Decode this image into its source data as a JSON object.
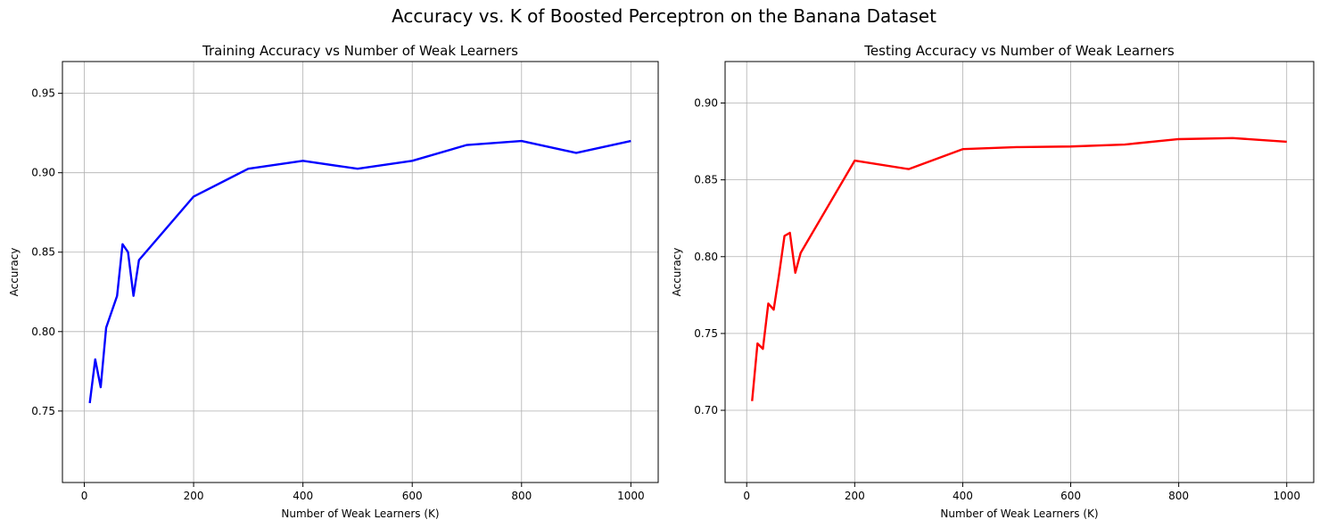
{
  "figure": {
    "suptitle": "Accuracy vs. K of Boosted Perceptron on the Banana Dataset"
  },
  "chart_data": [
    {
      "type": "line",
      "title": "Training Accuracy vs Number of Weak Learners",
      "xlabel": "Number of Weak Learners (K)",
      "ylabel": "Accuracy",
      "xlim": [
        -40,
        1050
      ],
      "ylim": [
        0.705,
        0.97
      ],
      "xticks": [
        0,
        200,
        400,
        600,
        800,
        1000
      ],
      "xtick_labels": [
        "0",
        "200",
        "400",
        "600",
        "800",
        "1000"
      ],
      "yticks": [
        0.75,
        0.8,
        0.85,
        0.9,
        0.95
      ],
      "ytick_labels": [
        "0.75",
        "0.80",
        "0.85",
        "0.90",
        "0.95"
      ],
      "grid": true,
      "color": "#0000ff",
      "x": [
        10,
        20,
        30,
        40,
        50,
        60,
        70,
        80,
        90,
        100,
        200,
        300,
        400,
        500,
        600,
        700,
        800,
        900,
        1000
      ],
      "y": [
        0.755,
        0.7825,
        0.765,
        0.8025,
        0.8125,
        0.8225,
        0.855,
        0.85,
        0.8225,
        0.845,
        0.885,
        0.9025,
        0.9075,
        0.9025,
        0.9075,
        0.9175,
        0.92,
        0.9125,
        0.92
      ]
    },
    {
      "type": "line",
      "title": "Testing Accuracy vs Number of Weak Learners",
      "xlabel": "Number of Weak Learners (K)",
      "ylabel": "Accuracy",
      "xlim": [
        -40,
        1050
      ],
      "ylim": [
        0.653,
        0.927
      ],
      "xticks": [
        0,
        200,
        400,
        600,
        800,
        1000
      ],
      "xtick_labels": [
        "0",
        "200",
        "400",
        "600",
        "800",
        "1000"
      ],
      "yticks": [
        0.7,
        0.75,
        0.8,
        0.85,
        0.9
      ],
      "ytick_labels": [
        "0.70",
        "0.75",
        "0.80",
        "0.85",
        "0.90"
      ],
      "grid": true,
      "color": "#ff0000",
      "x": [
        10,
        20,
        30,
        40,
        50,
        60,
        70,
        80,
        90,
        100,
        200,
        300,
        400,
        500,
        600,
        700,
        800,
        900,
        1000
      ],
      "y": [
        0.706,
        0.7435,
        0.74,
        0.7695,
        0.7655,
        0.7885,
        0.8135,
        0.8155,
        0.7895,
        0.8025,
        0.8625,
        0.857,
        0.87,
        0.8713,
        0.8717,
        0.873,
        0.8765,
        0.8772,
        0.8748
      ]
    }
  ]
}
